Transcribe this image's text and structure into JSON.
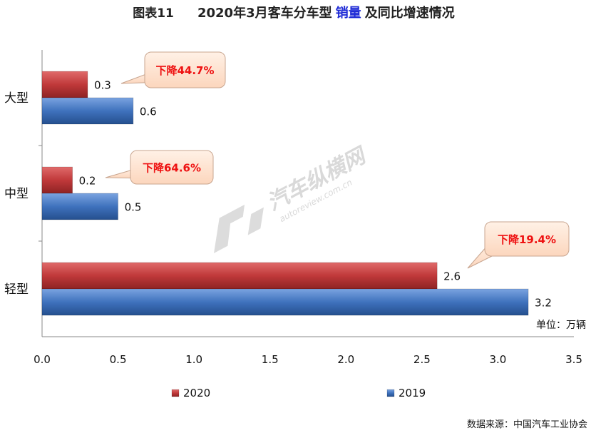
{
  "title": {
    "prefix": "图表11",
    "main_before": "2020年3月客车分车型",
    "highlight": "销量",
    "main_after": "及同比增速情况",
    "highlight_color": "#1f2bd6"
  },
  "unit_note": "单位：万辆",
  "source_note": "数据来源：中国汽车工业协会",
  "watermark": {
    "brand": "汽车纵横网",
    "url": "autoreview.com.cn"
  },
  "chart_data": {
    "type": "bar",
    "orientation": "horizontal",
    "categories": [
      "大型",
      "中型",
      "轻型"
    ],
    "series": [
      {
        "name": "2020",
        "values": [
          0.3,
          0.2,
          2.6
        ],
        "color": "#c0393a"
      },
      {
        "name": "2019",
        "values": [
          0.6,
          0.5,
          3.2
        ],
        "color": "#3f72bd"
      }
    ],
    "xlim": [
      0,
      3.5
    ],
    "xticks": [
      "0.0",
      "0.5",
      "1.0",
      "1.5",
      "2.0",
      "2.5",
      "3.0",
      "3.5"
    ],
    "grid": false,
    "legend_position": "bottom",
    "callouts": [
      "下降44.7%",
      "下降64.6%",
      "下降19.4%"
    ],
    "callout_fill": "#fde0cc",
    "callout_text_color": "#ee1111"
  }
}
